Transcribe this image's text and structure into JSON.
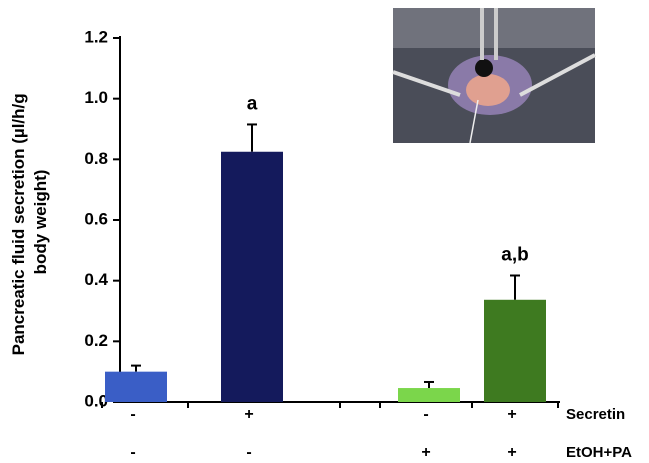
{
  "chart_data": {
    "type": "bar",
    "y_label": [
      "Pancreatic fluid secretion (µl/h/g",
      "body weight)"
    ],
    "conditions": [
      {
        "name": "Secretin",
        "values": [
          "-",
          "+",
          "-",
          "+"
        ]
      },
      {
        "name": "EtOH+PA",
        "values": [
          "-",
          "-",
          "+",
          "+"
        ]
      }
    ],
    "values": [
      0.1,
      0.825,
      0.046,
      0.337
    ],
    "errors": [
      0.02,
      0.09,
      0.02,
      0.08
    ],
    "bar_labels": [
      null,
      "a",
      null,
      "a,b"
    ],
    "colors": [
      "#3a5ec6",
      "#141a5c",
      "#7bd64b",
      "#3e7a20"
    ],
    "ylim": [
      0,
      1.2
    ],
    "yticks": [
      {
        "value": 0,
        "label": "0.0"
      },
      {
        "value": 0.2,
        "label": "0.2"
      },
      {
        "value": 0.4,
        "label": "0.4"
      },
      {
        "value": 0.6,
        "label": "0.6"
      },
      {
        "value": 0.8,
        "label": "0.8"
      },
      {
        "value": 1.0,
        "label": "1.0"
      },
      {
        "value": 1.2,
        "label": "1.2"
      }
    ]
  }
}
